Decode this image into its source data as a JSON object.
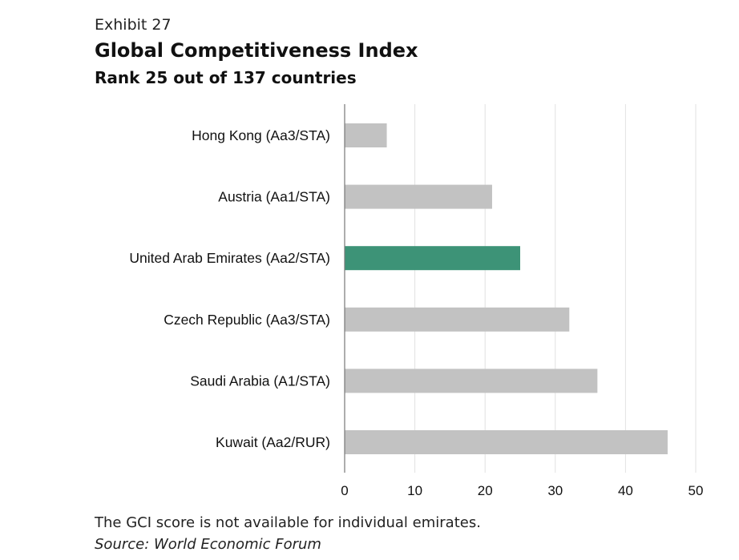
{
  "exhibit": "Exhibit 27",
  "footnote": "The GCI score is not available for individual emirates.",
  "source": "Source: World Economic Forum",
  "colors": {
    "bar_default": "#c2c2c2",
    "bar_highlight": "#3d9377",
    "gridline": "#e2e2e2",
    "axis": "#777777",
    "text": "#111111"
  },
  "chart_data": {
    "type": "bar",
    "orientation": "horizontal",
    "title": "Global Competitiveness Index",
    "subtitle": "Rank 25 out of 137 countries",
    "categories": [
      "Hong Kong (Aa3/STA)",
      "Austria (Aa1/STA)",
      "United Arab Emirates (Aa2/STA)",
      "Czech Republic (Aa3/STA)",
      "Saudi Arabia (A1/STA)",
      "Kuwait (Aa2/RUR)"
    ],
    "values": [
      6,
      21,
      25,
      32,
      36,
      46
    ],
    "highlight": "United Arab Emirates (Aa2/STA)",
    "xlim": [
      0,
      50
    ],
    "xticks": [
      0,
      10,
      20,
      30,
      40,
      50
    ],
    "xlabel": "",
    "ylabel": "",
    "grid": true
  }
}
